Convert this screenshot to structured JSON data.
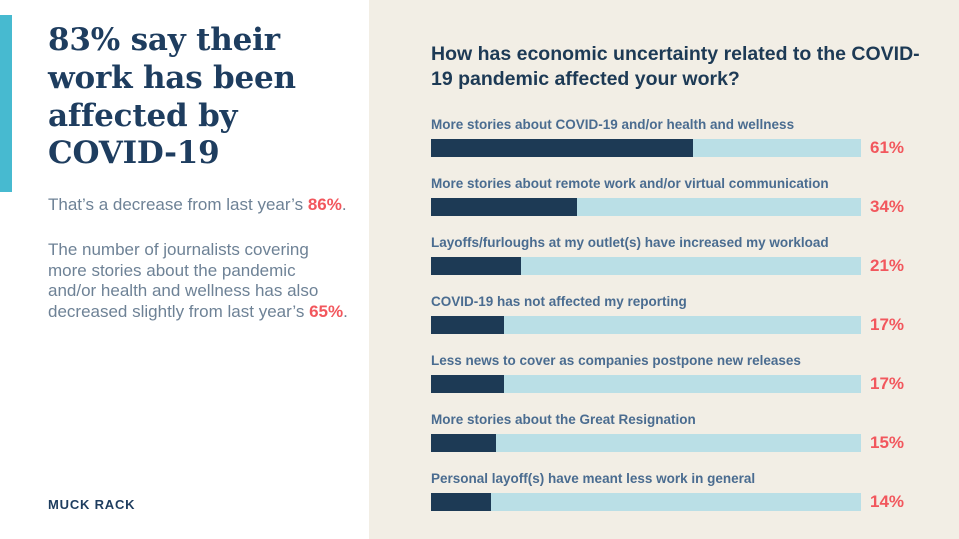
{
  "left_panel": {
    "headline": "83% say their work has been affected by COVID-19",
    "para1": {
      "prefix": "That’s a decrease from last year’s ",
      "value": "86%",
      "suffix": "."
    },
    "para2": {
      "prefix": "The number of journalists covering more stories about the pandemic and/or health and wellness has also decreased slightly from last year’s ",
      "value": "65%",
      "suffix": "."
    },
    "logo_text": "MUCK RACK"
  },
  "chart": {
    "question": "How has economic uncertainty related to the COVID-19 pandemic affected your work?"
  },
  "chart_data": {
    "type": "bar",
    "orientation": "horizontal",
    "title": "How has economic uncertainty related to the COVID-19 pandemic affected your work?",
    "categories": [
      "More stories about COVID-19 and/or health and wellness",
      "More stories about remote work and/or virtual communication",
      "Layoffs/furloughs at my outlet(s) have increased my workload",
      "COVID-19 has not affected my reporting",
      "Less news to cover as companies postpone new releases",
      "More stories about the Great Resignation",
      "Personal layoff(s) have meant less work in general"
    ],
    "values": [
      61,
      34,
      21,
      17,
      17,
      15,
      14
    ],
    "unit": "%",
    "xlim": [
      0,
      100
    ],
    "grid": false,
    "legend": "none",
    "value_labels": "right-of-bar"
  },
  "colors": {
    "accent_teal": "#47bad0",
    "navy": "#1d3a55",
    "headline_navy": "#1e3d5f",
    "body_slate": "#6e8296",
    "bar_label_slate": "#4a6c90",
    "coral_red": "#f2575d",
    "bar_track_blue": "#badfe6",
    "panel_cream": "#f2eee5",
    "background_white": "#ffffff"
  }
}
